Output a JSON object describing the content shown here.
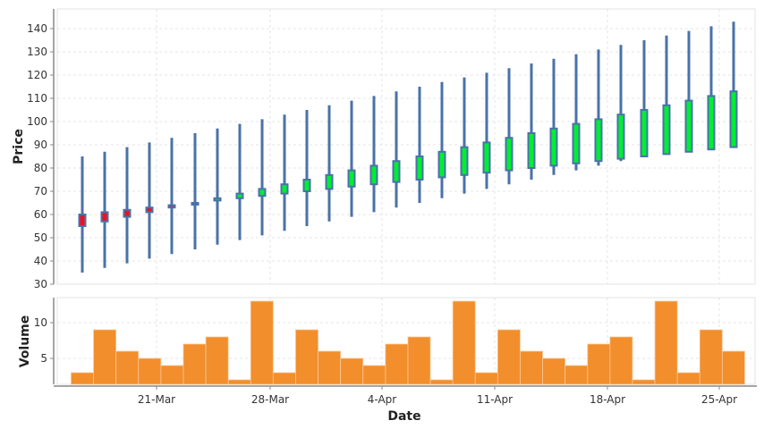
{
  "chart_data": [
    {
      "type": "candlestick",
      "title": "",
      "xlabel": "",
      "ylabel": "Price",
      "ylim": [
        30,
        145
      ],
      "yticks": [
        30,
        40,
        50,
        60,
        70,
        80,
        90,
        100,
        110,
        120,
        130,
        140
      ],
      "grid": true,
      "colors": {
        "up": "#00ee33",
        "down": "#ee1122",
        "outline": "#4a72a8"
      },
      "candles": [
        {
          "open": 60,
          "close": 55,
          "low": 35,
          "high": 85
        },
        {
          "open": 61,
          "close": 57,
          "low": 37,
          "high": 87
        },
        {
          "open": 62,
          "close": 59,
          "low": 39,
          "high": 89
        },
        {
          "open": 63,
          "close": 61,
          "low": 41,
          "high": 91
        },
        {
          "open": 64,
          "close": 63,
          "low": 43,
          "high": 93
        },
        {
          "open": 65,
          "close": 65,
          "low": 45,
          "high": 95
        },
        {
          "open": 66,
          "close": 67,
          "low": 47,
          "high": 97
        },
        {
          "open": 67,
          "close": 69,
          "low": 49,
          "high": 99
        },
        {
          "open": 68,
          "close": 71,
          "low": 51,
          "high": 101
        },
        {
          "open": 69,
          "close": 73,
          "low": 53,
          "high": 103
        },
        {
          "open": 70,
          "close": 75,
          "low": 55,
          "high": 105
        },
        {
          "open": 71,
          "close": 77,
          "low": 57,
          "high": 107
        },
        {
          "open": 72,
          "close": 79,
          "low": 59,
          "high": 109
        },
        {
          "open": 73,
          "close": 81,
          "low": 61,
          "high": 111
        },
        {
          "open": 74,
          "close": 83,
          "low": 63,
          "high": 113
        },
        {
          "open": 75,
          "close": 85,
          "low": 65,
          "high": 115
        },
        {
          "open": 76,
          "close": 87,
          "low": 67,
          "high": 117
        },
        {
          "open": 77,
          "close": 89,
          "low": 69,
          "high": 119
        },
        {
          "open": 78,
          "close": 91,
          "low": 71,
          "high": 121
        },
        {
          "open": 79,
          "close": 93,
          "low": 73,
          "high": 123
        },
        {
          "open": 80,
          "close": 95,
          "low": 75,
          "high": 125
        },
        {
          "open": 81,
          "close": 97,
          "low": 77,
          "high": 127
        },
        {
          "open": 82,
          "close": 99,
          "low": 79,
          "high": 129
        },
        {
          "open": 83,
          "close": 101,
          "low": 81,
          "high": 131
        },
        {
          "open": 84,
          "close": 103,
          "low": 83,
          "high": 133
        },
        {
          "open": 85,
          "close": 105,
          "low": 85,
          "high": 135
        },
        {
          "open": 86,
          "close": 107,
          "low": 87,
          "high": 137
        },
        {
          "open": 87,
          "close": 109,
          "low": 89,
          "high": 139
        },
        {
          "open": 88,
          "close": 111,
          "low": 91,
          "high": 141
        },
        {
          "open": 89,
          "close": 113,
          "low": 93,
          "high": 143
        }
      ]
    },
    {
      "type": "bar",
      "title": "",
      "xlabel": "Date",
      "ylabel": "Volume",
      "ylim": [
        1.3,
        13.5
      ],
      "yticks": [
        5,
        10
      ],
      "grid": true,
      "color": "#f28e2b",
      "values": [
        3,
        9,
        6,
        5,
        4,
        7,
        8,
        2,
        13,
        3,
        9,
        6,
        5,
        4,
        7,
        8,
        2,
        13,
        3,
        9,
        6,
        5,
        4,
        7,
        8,
        2,
        13,
        3,
        9,
        6
      ]
    }
  ],
  "x_axis": {
    "label": "Date",
    "ticks": [
      "21-Mar",
      "28-Mar",
      "4-Apr",
      "11-Apr",
      "18-Apr",
      "25-Apr"
    ]
  },
  "labels": {
    "price_axis": "Price",
    "volume_axis": "Volume",
    "date_axis": "Date"
  }
}
